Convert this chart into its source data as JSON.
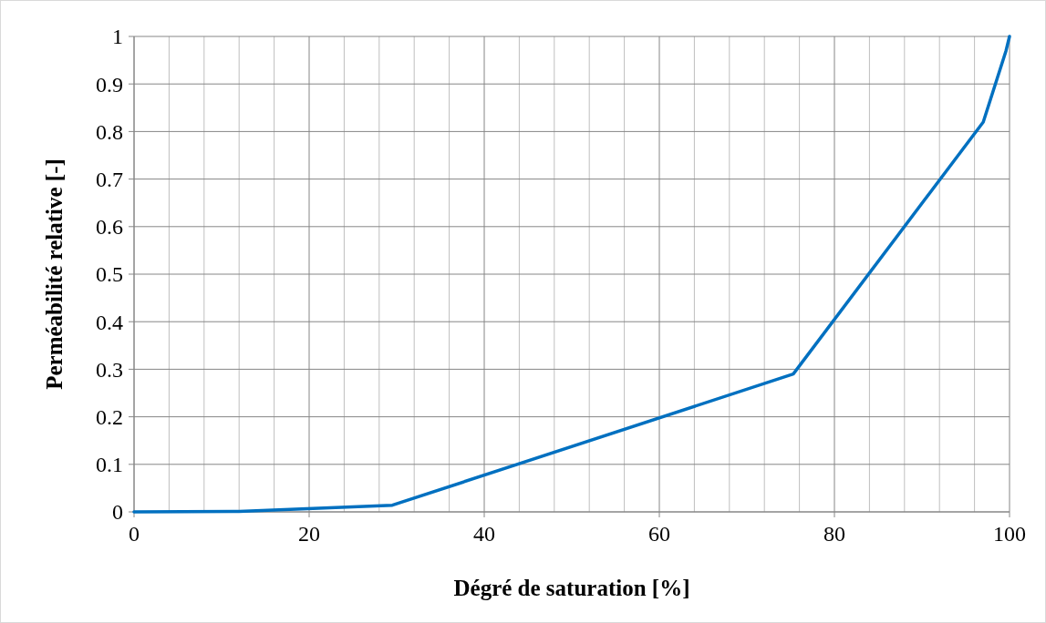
{
  "chart_data": {
    "type": "line",
    "xlabel": "Dégré de saturation [%]",
    "ylabel": "Perméabilité relative [-]",
    "x": [
      0,
      12,
      29.5,
      75.3,
      97,
      99.6,
      100
    ],
    "series": [
      {
        "color": "#0070c0",
        "values": [
          0,
          0.001,
          0.014,
          0.29,
          0.82,
          0.97,
          1
        ]
      }
    ],
    "xlim": [
      0,
      100
    ],
    "ylim": [
      0,
      1
    ],
    "xticks": [
      0,
      {
        "value": 4,
        "label": null
      },
      {
        "value": 8,
        "label": null
      },
      {
        "value": 12,
        "label": null
      },
      {
        "value": 16,
        "label": null
      },
      20,
      {
        "value": 24,
        "label": null
      },
      {
        "value": 28,
        "label": null
      },
      {
        "value": 32,
        "label": null
      },
      {
        "value": 36,
        "label": null
      },
      40,
      {
        "value": 44,
        "label": null
      },
      {
        "value": 48,
        "label": null
      },
      {
        "value": 52,
        "label": null
      },
      {
        "value": 56,
        "label": null
      },
      60,
      {
        "value": 64,
        "label": null
      },
      {
        "value": 68,
        "label": null
      },
      {
        "value": 72,
        "label": null
      },
      {
        "value": 76,
        "label": null
      },
      80,
      {
        "value": 84,
        "label": null
      },
      {
        "value": 88,
        "label": null
      },
      {
        "value": 92,
        "label": null
      },
      {
        "value": 96,
        "label": null
      },
      100
    ],
    "yticks": [
      0,
      0.1,
      0.2,
      0.3,
      0.4,
      0.5,
      0.6,
      0.7,
      0.8,
      0.9,
      1
    ],
    "grid": true,
    "marker": "none",
    "line_style": "solid"
  }
}
